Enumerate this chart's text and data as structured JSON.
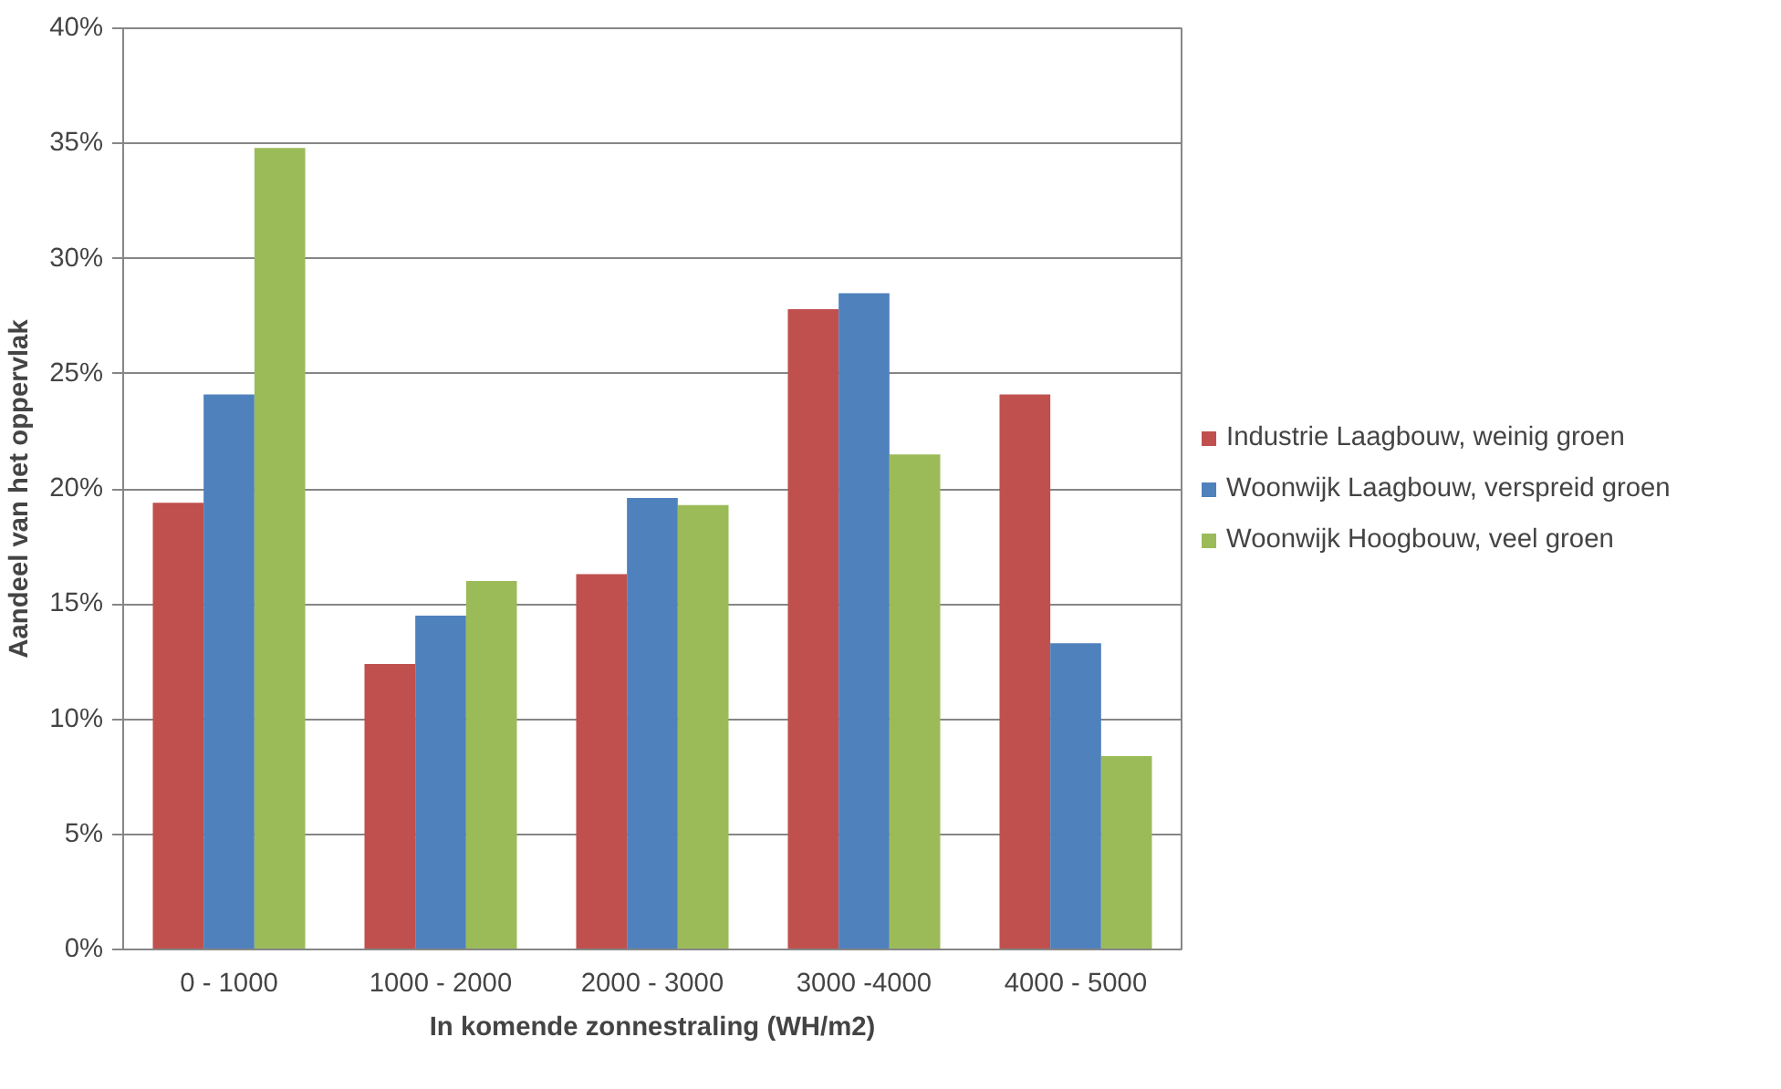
{
  "chart_data": {
    "type": "bar",
    "xlabel": "In komende zonnestraling (WH/m2)",
    "ylabel": "Aandeel van het oppervlak",
    "categories": [
      "0 - 1000",
      "1000 - 2000",
      "2000 - 3000",
      "3000 -4000",
      "4000 - 5000"
    ],
    "series": [
      {
        "name": "Industrie Laagbouw, weinig groen",
        "color": "#c0504d",
        "values": [
          19.4,
          12.4,
          16.3,
          27.8,
          24.1
        ]
      },
      {
        "name": "Woonwijk Laagbouw, verspreid groen",
        "color": "#4f81bd",
        "values": [
          24.1,
          14.5,
          19.6,
          28.5,
          13.3
        ]
      },
      {
        "name": "Woonwijk Hoogbouw, veel groen",
        "color": "#9bbb59",
        "values": [
          34.8,
          16.0,
          19.3,
          21.5,
          8.4
        ]
      }
    ],
    "ylim": [
      0,
      40
    ],
    "yticks": [
      {
        "value": 0,
        "label": "0%"
      },
      {
        "value": 5,
        "label": "5%"
      },
      {
        "value": 10,
        "label": "10%"
      },
      {
        "value": 15,
        "label": "15%"
      },
      {
        "value": 20,
        "label": "20%"
      },
      {
        "value": 25,
        "label": "25%"
      },
      {
        "value": 30,
        "label": "30%"
      },
      {
        "value": 35,
        "label": "35%"
      },
      {
        "value": 40,
        "label": "40%"
      }
    ],
    "grid": "y",
    "legend": "right"
  }
}
